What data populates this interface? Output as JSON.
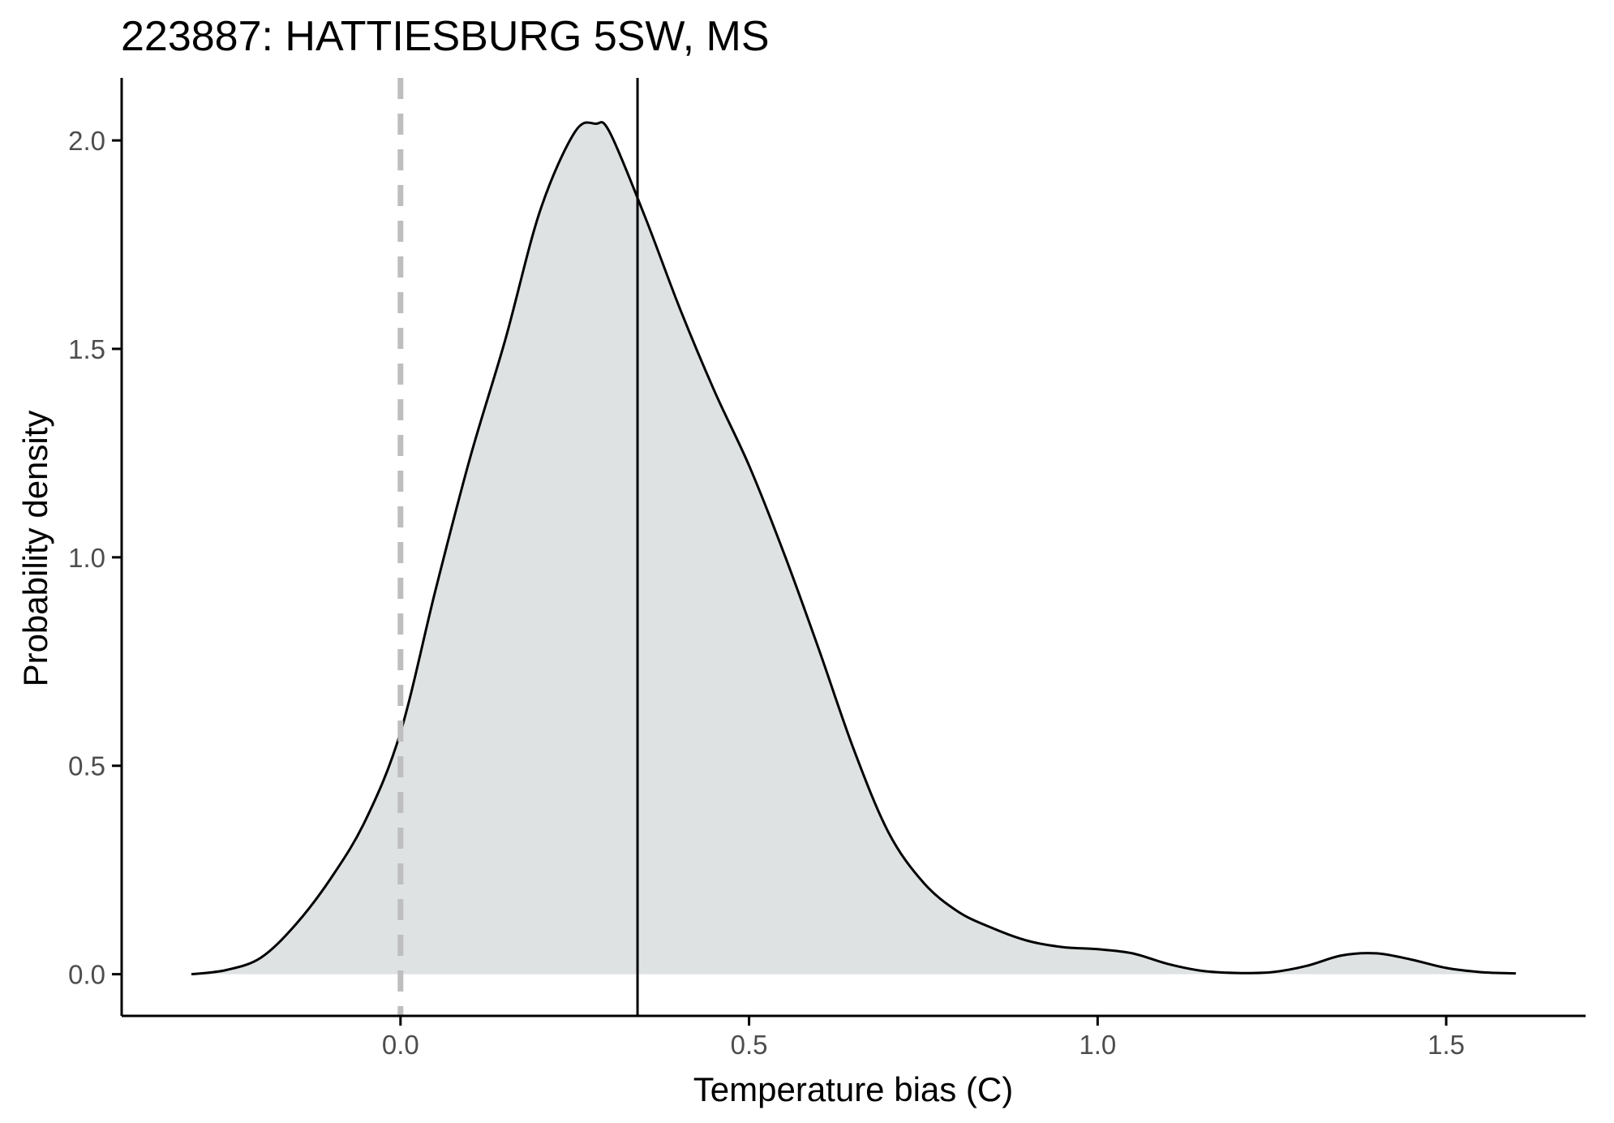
{
  "chart_data": {
    "type": "area",
    "title": "223887: HATTIESBURG 5SW, MS",
    "xlabel": "Temperature bias (C)",
    "ylabel": "Probability density",
    "xlim": [
      -0.4,
      1.7
    ],
    "ylim": [
      -0.1,
      2.15
    ],
    "x_ticks": [
      0.0,
      0.5,
      1.0,
      1.5
    ],
    "x_tick_labels": [
      "0.0",
      "0.5",
      "1.0",
      "1.5"
    ],
    "y_ticks": [
      0.0,
      0.5,
      1.0,
      1.5,
      2.0
    ],
    "y_tick_labels": [
      "0.0",
      "0.5",
      "1.0",
      "1.5",
      "2.0"
    ],
    "grid": false,
    "colors": {
      "fill": "#dee2e3",
      "line": "#000000",
      "reference_line": "#bebebe"
    },
    "series": [
      {
        "x": [
          -0.3,
          -0.25,
          -0.2,
          -0.15,
          -0.1,
          -0.05,
          0.0,
          0.05,
          0.1,
          0.15,
          0.2,
          0.25,
          0.28,
          0.3,
          0.35,
          0.4,
          0.45,
          0.5,
          0.55,
          0.6,
          0.65,
          0.7,
          0.75,
          0.8,
          0.85,
          0.9,
          0.95,
          1.0,
          1.05,
          1.1,
          1.15,
          1.2,
          1.25,
          1.3,
          1.35,
          1.4,
          1.45,
          1.5,
          1.55,
          1.6
        ],
        "y": [
          0.0,
          0.01,
          0.04,
          0.12,
          0.23,
          0.37,
          0.58,
          0.92,
          1.24,
          1.52,
          1.83,
          2.02,
          2.04,
          2.02,
          1.82,
          1.6,
          1.4,
          1.22,
          1.01,
          0.78,
          0.54,
          0.34,
          0.22,
          0.15,
          0.11,
          0.08,
          0.065,
          0.06,
          0.05,
          0.025,
          0.008,
          0.003,
          0.005,
          0.02,
          0.045,
          0.05,
          0.035,
          0.015,
          0.005,
          0.002
        ]
      }
    ],
    "reference_lines": [
      {
        "x": 0.0,
        "style": "dashed"
      },
      {
        "x": 0.34,
        "style": "solid"
      }
    ]
  }
}
